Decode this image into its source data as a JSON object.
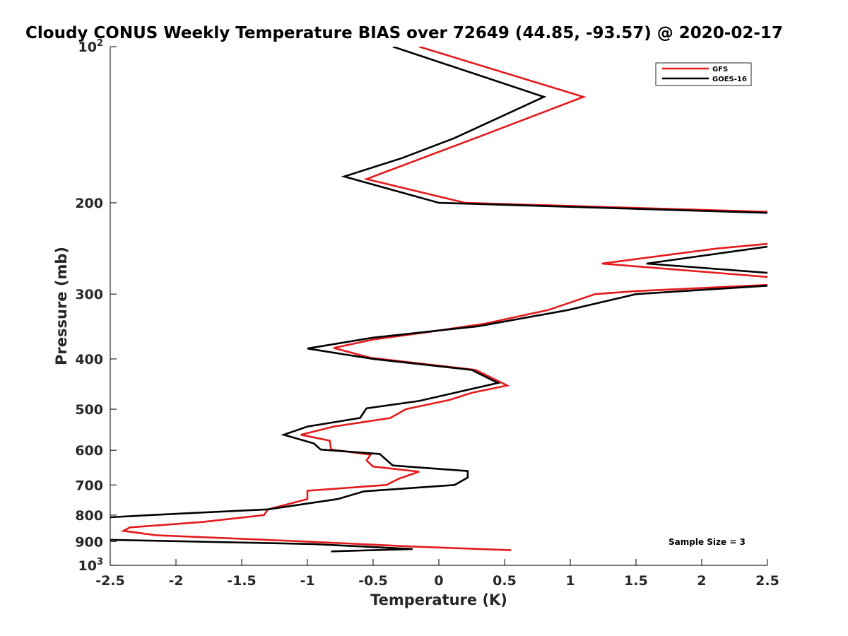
{
  "chart_data": {
    "type": "line",
    "title": "Cloudy CONUS Weekly Temperature BIAS over 72649 (44.85, -93.57) @ 2020-02-17",
    "xlabel": "Temperature (K)",
    "ylabel": "Pressure (mb)",
    "xlim": [
      -2.5,
      2.5
    ],
    "ylim": [
      100,
      1000
    ],
    "y_scale": "log",
    "y_direction": "reversed",
    "grid": false,
    "legend_position": "top-right",
    "x_ticks": [
      "-2.5",
      "-2",
      "-1.5",
      "-1",
      "-0.5",
      "0",
      "0.5",
      "1",
      "1.5",
      "2",
      "2.5"
    ],
    "y_ticks": [
      {
        "value": 100,
        "base": "10",
        "exp": "2"
      },
      {
        "value": 200,
        "label": "200"
      },
      {
        "value": 300,
        "label": "300"
      },
      {
        "value": 400,
        "label": "400"
      },
      {
        "value": 500,
        "label": "500"
      },
      {
        "value": 600,
        "label": "600"
      },
      {
        "value": 700,
        "label": "700"
      },
      {
        "value": 800,
        "label": "800"
      },
      {
        "value": 900,
        "label": "900"
      },
      {
        "value": 1000,
        "base": "10",
        "exp": "3"
      }
    ],
    "annotation": "Sample Size = 3",
    "series": [
      {
        "name": "GFS",
        "color": "#e41a1c",
        "points": [
          [
            -0.15,
            100
          ],
          [
            1.1,
            125
          ],
          [
            0.28,
            150
          ],
          [
            -0.55,
            180
          ],
          [
            0.2,
            200
          ],
          [
            3.0,
            210
          ],
          [
            3.0,
            240
          ],
          [
            2.5,
            240
          ],
          [
            2.12,
            245
          ],
          [
            1.24,
            262
          ],
          [
            2.5,
            278
          ],
          [
            3.0,
            278
          ],
          [
            3.0,
            287
          ],
          [
            2.5,
            288
          ],
          [
            1.5,
            296
          ],
          [
            1.19,
            300
          ],
          [
            0.83,
            322
          ],
          [
            0.35,
            342
          ],
          [
            -0.08,
            355
          ],
          [
            -0.5,
            367
          ],
          [
            -0.8,
            381
          ],
          [
            -0.52,
            398
          ],
          [
            0.28,
            420
          ],
          [
            0.52,
            450
          ],
          [
            0.25,
            465
          ],
          [
            0.08,
            480
          ],
          [
            -0.25,
            500
          ],
          [
            -0.37,
            520
          ],
          [
            -0.8,
            540
          ],
          [
            -1.05,
            560
          ],
          [
            -0.83,
            575
          ],
          [
            -0.82,
            598
          ],
          [
            -0.52,
            612
          ],
          [
            -0.55,
            628
          ],
          [
            -0.5,
            645
          ],
          [
            -0.15,
            660
          ],
          [
            -0.3,
            680
          ],
          [
            -0.4,
            700
          ],
          [
            -1.0,
            718
          ],
          [
            -1.0,
            745
          ],
          [
            -1.3,
            780
          ],
          [
            -1.33,
            800
          ],
          [
            -1.8,
            825
          ],
          [
            -2.35,
            845
          ],
          [
            -2.4,
            858
          ],
          [
            -2.15,
            875
          ],
          [
            -1.0,
            900
          ],
          [
            -0.2,
            920
          ],
          [
            0.55,
            935
          ]
        ]
      },
      {
        "name": "GOES-16",
        "color": "#000000",
        "points": [
          [
            -0.35,
            100
          ],
          [
            0.8,
            125
          ],
          [
            0.12,
            150
          ],
          [
            -0.28,
            164
          ],
          [
            -0.72,
            178
          ],
          [
            0.0,
            200
          ],
          [
            3.0,
            211
          ],
          [
            3.0,
            238
          ],
          [
            2.5,
            243
          ],
          [
            1.58,
            262
          ],
          [
            2.5,
            273
          ],
          [
            3.0,
            273
          ],
          [
            3.0,
            283
          ],
          [
            2.5,
            289
          ],
          [
            1.5,
            300
          ],
          [
            0.98,
            322
          ],
          [
            0.3,
            346
          ],
          [
            -0.5,
            364
          ],
          [
            -1.0,
            382
          ],
          [
            -0.5,
            400
          ],
          [
            0.25,
            420
          ],
          [
            0.45,
            445
          ],
          [
            0.12,
            465
          ],
          [
            -0.15,
            482
          ],
          [
            -0.55,
            498
          ],
          [
            -0.6,
            520
          ],
          [
            -1.0,
            540
          ],
          [
            -1.18,
            560
          ],
          [
            -0.95,
            582
          ],
          [
            -0.9,
            598
          ],
          [
            -0.45,
            610
          ],
          [
            -0.35,
            642
          ],
          [
            0.22,
            658
          ],
          [
            0.22,
            677
          ],
          [
            0.12,
            700
          ],
          [
            -0.57,
            720
          ],
          [
            -0.77,
            745
          ],
          [
            -1.3,
            780
          ],
          [
            -2.2,
            800
          ],
          [
            -2.5,
            808
          ],
          [
            -3.0,
            810
          ],
          [
            -3.0,
            890
          ],
          [
            -2.5,
            893
          ],
          [
            -0.95,
            910
          ],
          [
            -0.2,
            930
          ],
          [
            -0.82,
            940
          ]
        ]
      }
    ]
  }
}
